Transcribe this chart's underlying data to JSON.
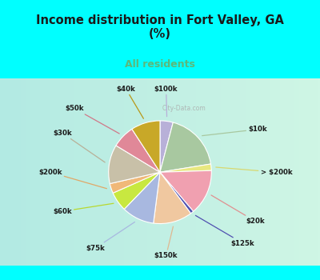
{
  "title": "Income distribution in Fort Valley, GA\n(%)",
  "subtitle": "All residents",
  "title_color": "#1a1a1a",
  "subtitle_color": "#5cb87a",
  "bg_cyan": "#00FFFF",
  "chart_bg_top": "#d4ede8",
  "chart_bg_bottom": "#e8f5e2",
  "labels": [
    "$100k",
    "$10k",
    "> $200k",
    "$20k",
    "$125k",
    "$150k",
    "$75k",
    "$60k",
    "$200k",
    "$30k",
    "$50k",
    "$40k"
  ],
  "values": [
    4,
    18,
    2,
    14,
    1,
    12,
    10,
    6,
    3,
    12,
    7,
    9
  ],
  "colors": [
    "#b8b0d8",
    "#a8c8a0",
    "#e8e880",
    "#f0a0b0",
    "#5050b0",
    "#f0c8a0",
    "#a8b8e0",
    "#c8e840",
    "#f0b878",
    "#c8c0a8",
    "#e08898",
    "#c8a828"
  ],
  "line_colors": [
    "#b8b0d8",
    "#a8c8a0",
    "#d8d870",
    "#e09090",
    "#5050b0",
    "#e0b890",
    "#a8b8e0",
    "#b8d830",
    "#e0a868",
    "#b8b098",
    "#d07888",
    "#b89818"
  ],
  "watermark": "City-Data.com"
}
